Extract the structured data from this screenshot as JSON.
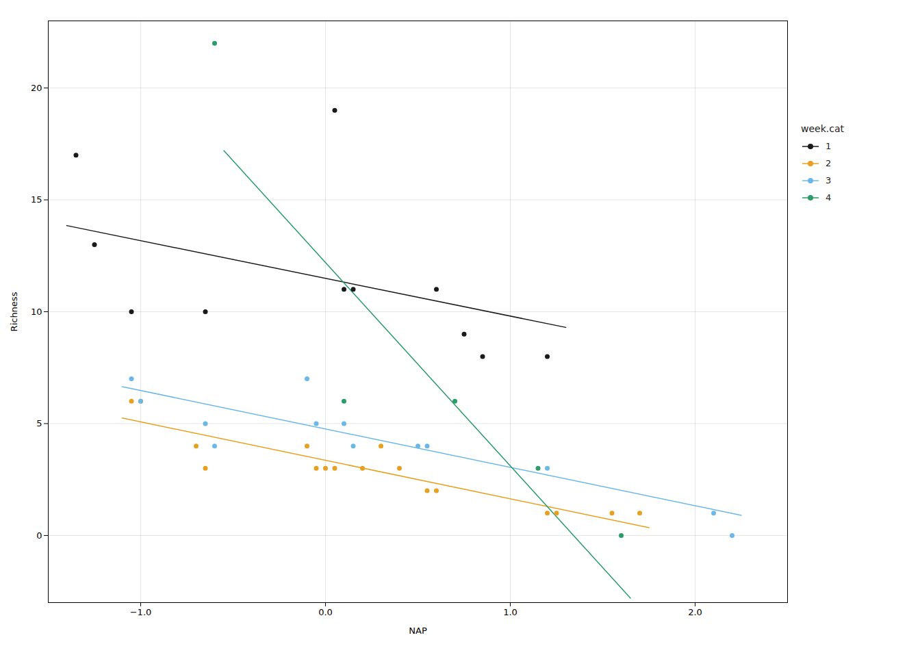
{
  "chart_data": {
    "type": "scatter",
    "xlabel": "NAP",
    "ylabel": "Richness",
    "legend_title": "week.cat",
    "legend": "right",
    "grid": true,
    "xlim": [
      -1.5,
      2.5
    ],
    "ylim": [
      -3,
      23
    ],
    "xticks": [
      -1,
      0,
      1,
      2
    ],
    "yticks": [
      0,
      5,
      10,
      15,
      20
    ],
    "series": [
      {
        "name": "1",
        "color": "#1a1a1a",
        "marker": "o",
        "x": [
          -1.35,
          -1.25,
          -1.05,
          -0.65,
          0.05,
          0.1,
          0.15,
          0.6,
          0.75,
          0.85,
          1.2
        ],
        "values": [
          17,
          13,
          10,
          10,
          19,
          11,
          11,
          11,
          9,
          8,
          8
        ],
        "line": {
          "x": [
            -1.4,
            1.3
          ],
          "values": [
            13.85,
            9.3
          ]
        }
      },
      {
        "name": "2",
        "color": "#E8A020",
        "marker": "o",
        "x": [
          -1.05,
          -1.0,
          -0.7,
          -0.65,
          -0.1,
          -0.05,
          0.0,
          0.05,
          0.2,
          0.3,
          0.4,
          0.55,
          0.6,
          1.2,
          1.25,
          1.55,
          1.7
        ],
        "values": [
          6,
          6,
          4,
          3,
          4,
          3,
          3,
          3,
          3,
          4,
          3,
          2,
          2,
          1,
          1,
          1,
          1
        ],
        "line": {
          "x": [
            -1.1,
            1.75
          ],
          "values": [
            5.25,
            0.35
          ]
        }
      },
      {
        "name": "3",
        "color": "#6BB8E8",
        "marker": "o",
        "x": [
          -1.05,
          -1.0,
          -0.65,
          -0.6,
          -0.1,
          -0.05,
          0.1,
          0.15,
          0.5,
          0.55,
          1.2,
          2.1,
          2.2
        ],
        "values": [
          7,
          6,
          5,
          4,
          7,
          5,
          5,
          4,
          4,
          4,
          3,
          1,
          0
        ],
        "line": {
          "x": [
            -1.1,
            2.25
          ],
          "values": [
            6.65,
            0.9
          ]
        }
      },
      {
        "name": "4",
        "color": "#2A9D6A",
        "marker": "o",
        "x": [
          -0.6,
          0.1,
          0.7,
          1.15,
          1.6
        ],
        "values": [
          22,
          6,
          6,
          3,
          0
        ],
        "line": {
          "x": [
            -0.55,
            1.65
          ],
          "values": [
            17.2,
            -2.8
          ]
        }
      }
    ]
  }
}
